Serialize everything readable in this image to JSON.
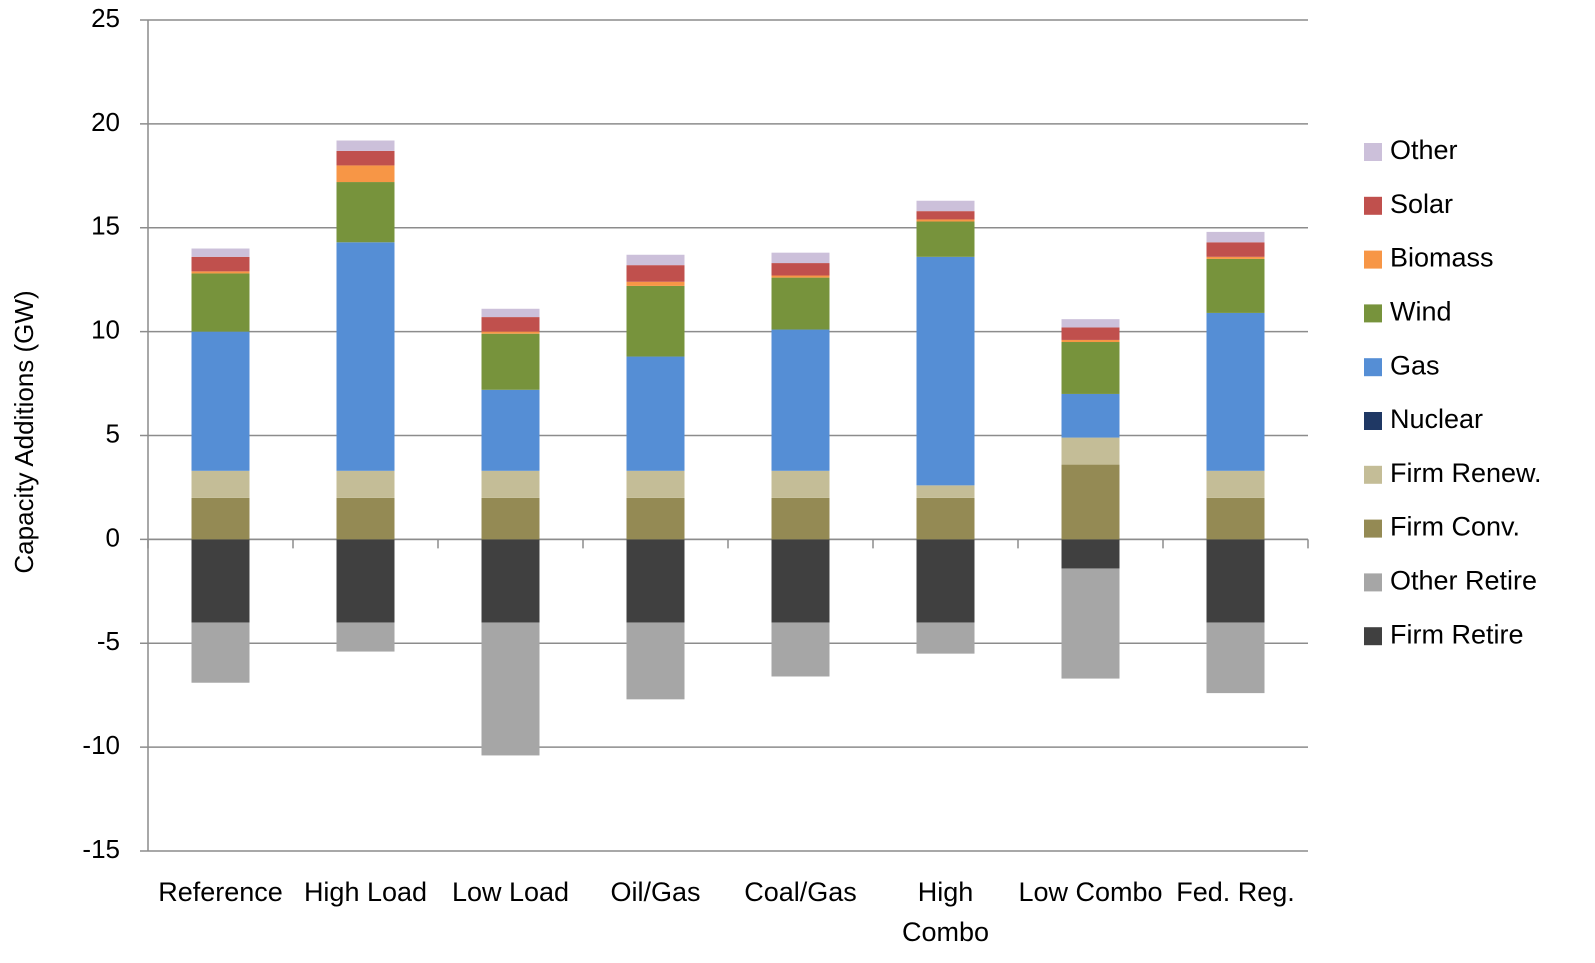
{
  "chart_data": {
    "type": "stacked_bar",
    "y_label": "Capacity Additions (GW)",
    "categories": [
      "Reference",
      "High Load",
      "Low Load",
      "Oil/Gas",
      "Coal/Gas",
      "High Combo",
      "Low Combo",
      "Fed. Reg."
    ],
    "series": [
      {
        "name": "Firm Retire",
        "color": "#404040",
        "values": [
          -4.0,
          -4.0,
          -4.0,
          -4.0,
          -4.0,
          -4.0,
          -1.4,
          -4.0
        ]
      },
      {
        "name": "Other Retire",
        "color": "#a6a6a6",
        "values": [
          -2.9,
          -1.4,
          -6.4,
          -3.7,
          -2.6,
          -1.5,
          -5.3,
          -3.4
        ]
      },
      {
        "name": "Firm Conv.",
        "color": "#948a54",
        "values": [
          2.0,
          2.0,
          2.0,
          2.0,
          2.0,
          2.0,
          3.6,
          2.0
        ]
      },
      {
        "name": "Firm Renew.",
        "color": "#c4bd97",
        "values": [
          1.3,
          1.3,
          1.3,
          1.3,
          1.3,
          0.6,
          1.3,
          1.3
        ]
      },
      {
        "name": "Nuclear",
        "color": "#1f3864",
        "values": [
          0,
          0,
          0,
          0,
          0,
          0,
          0,
          0
        ]
      },
      {
        "name": "Gas",
        "color": "#558ed5",
        "values": [
          6.7,
          11.0,
          3.9,
          5.5,
          6.8,
          11.0,
          2.1,
          7.6
        ]
      },
      {
        "name": "Wind",
        "color": "#77933c",
        "values": [
          2.8,
          2.9,
          2.7,
          3.4,
          2.5,
          1.7,
          2.5,
          2.6
        ]
      },
      {
        "name": "Biomass",
        "color": "#f79646",
        "values": [
          0.1,
          0.8,
          0.1,
          0.2,
          0.1,
          0.1,
          0.1,
          0.1
        ]
      },
      {
        "name": "Solar",
        "color": "#c0504d",
        "values": [
          0.7,
          0.7,
          0.7,
          0.8,
          0.6,
          0.4,
          0.6,
          0.7
        ]
      },
      {
        "name": "Other",
        "color": "#ccc0da",
        "values": [
          0.4,
          0.5,
          0.4,
          0.5,
          0.5,
          0.5,
          0.4,
          0.5
        ]
      }
    ],
    "ylim": [
      -15,
      25
    ],
    "yticks": [
      -15,
      -10,
      -5,
      0,
      5,
      10,
      15,
      20,
      25
    ],
    "grid": true,
    "legend": "right"
  }
}
